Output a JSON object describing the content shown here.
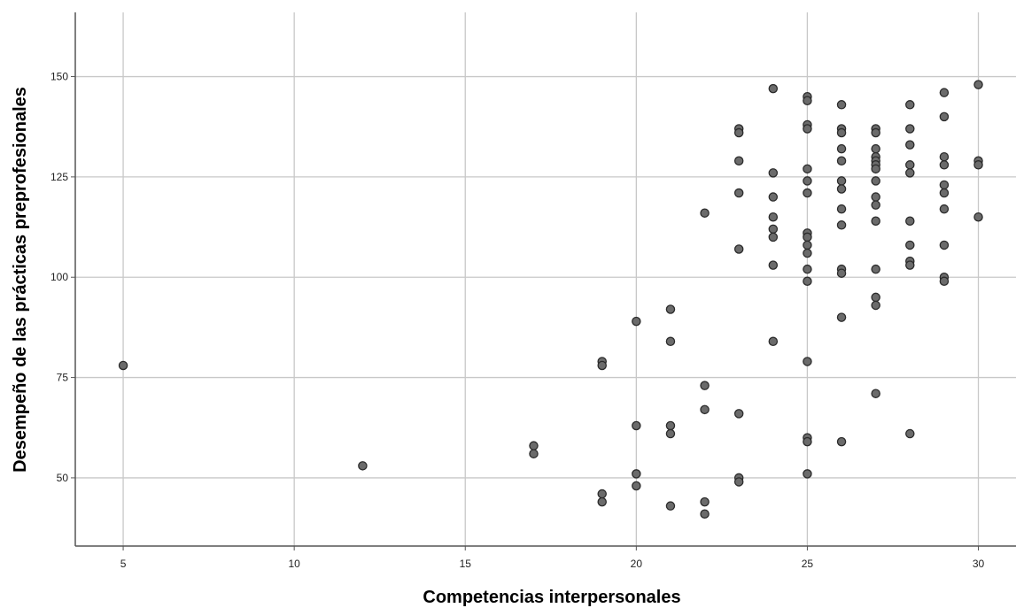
{
  "chart_data": {
    "type": "scatter",
    "title": "",
    "xlabel": "Competencias interpersonales",
    "ylabel": "Desempeño de las prácticas preprofesionales",
    "xlim": [
      3.6,
      31.1
    ],
    "ylim": [
      33,
      166
    ],
    "xticks": [
      5,
      10,
      15,
      20,
      25,
      30
    ],
    "yticks": [
      50,
      75,
      100,
      125,
      150
    ],
    "grid": true,
    "legend": "none",
    "marker_color": "#6b6b6b",
    "marker_edge_color": "#2b2b2b",
    "points": [
      {
        "x": 5,
        "y": 78
      },
      {
        "x": 12,
        "y": 53
      },
      {
        "x": 17,
        "y": 58
      },
      {
        "x": 17,
        "y": 56
      },
      {
        "x": 19,
        "y": 79
      },
      {
        "x": 19,
        "y": 78
      },
      {
        "x": 19,
        "y": 46
      },
      {
        "x": 19,
        "y": 44
      },
      {
        "x": 20,
        "y": 89
      },
      {
        "x": 20,
        "y": 63
      },
      {
        "x": 20,
        "y": 51
      },
      {
        "x": 20,
        "y": 48
      },
      {
        "x": 21,
        "y": 92
      },
      {
        "x": 21,
        "y": 84
      },
      {
        "x": 21,
        "y": 63
      },
      {
        "x": 21,
        "y": 61
      },
      {
        "x": 21,
        "y": 43
      },
      {
        "x": 22,
        "y": 116
      },
      {
        "x": 22,
        "y": 73
      },
      {
        "x": 22,
        "y": 67
      },
      {
        "x": 22,
        "y": 44
      },
      {
        "x": 22,
        "y": 41
      },
      {
        "x": 23,
        "y": 137
      },
      {
        "x": 23,
        "y": 136
      },
      {
        "x": 23,
        "y": 129
      },
      {
        "x": 23,
        "y": 121
      },
      {
        "x": 23,
        "y": 107
      },
      {
        "x": 23,
        "y": 66
      },
      {
        "x": 23,
        "y": 50
      },
      {
        "x": 23,
        "y": 49
      },
      {
        "x": 24,
        "y": 147
      },
      {
        "x": 24,
        "y": 126
      },
      {
        "x": 24,
        "y": 120
      },
      {
        "x": 24,
        "y": 115
      },
      {
        "x": 24,
        "y": 112
      },
      {
        "x": 24,
        "y": 110
      },
      {
        "x": 24,
        "y": 103
      },
      {
        "x": 24,
        "y": 84
      },
      {
        "x": 25,
        "y": 145
      },
      {
        "x": 25,
        "y": 144
      },
      {
        "x": 25,
        "y": 138
      },
      {
        "x": 25,
        "y": 137
      },
      {
        "x": 25,
        "y": 127
      },
      {
        "x": 25,
        "y": 124
      },
      {
        "x": 25,
        "y": 121
      },
      {
        "x": 25,
        "y": 111
      },
      {
        "x": 25,
        "y": 110
      },
      {
        "x": 25,
        "y": 108
      },
      {
        "x": 25,
        "y": 106
      },
      {
        "x": 25,
        "y": 102
      },
      {
        "x": 25,
        "y": 99
      },
      {
        "x": 25,
        "y": 79
      },
      {
        "x": 25,
        "y": 60
      },
      {
        "x": 25,
        "y": 59
      },
      {
        "x": 25,
        "y": 51
      },
      {
        "x": 26,
        "y": 143
      },
      {
        "x": 26,
        "y": 137
      },
      {
        "x": 26,
        "y": 136
      },
      {
        "x": 26,
        "y": 132
      },
      {
        "x": 26,
        "y": 129
      },
      {
        "x": 26,
        "y": 124
      },
      {
        "x": 26,
        "y": 122
      },
      {
        "x": 26,
        "y": 117
      },
      {
        "x": 26,
        "y": 113
      },
      {
        "x": 26,
        "y": 102
      },
      {
        "x": 26,
        "y": 101
      },
      {
        "x": 26,
        "y": 90
      },
      {
        "x": 26,
        "y": 59
      },
      {
        "x": 27,
        "y": 137
      },
      {
        "x": 27,
        "y": 136
      },
      {
        "x": 27,
        "y": 132
      },
      {
        "x": 27,
        "y": 130
      },
      {
        "x": 27,
        "y": 129
      },
      {
        "x": 27,
        "y": 128
      },
      {
        "x": 27,
        "y": 127
      },
      {
        "x": 27,
        "y": 124
      },
      {
        "x": 27,
        "y": 120
      },
      {
        "x": 27,
        "y": 118
      },
      {
        "x": 27,
        "y": 114
      },
      {
        "x": 27,
        "y": 102
      },
      {
        "x": 27,
        "y": 95
      },
      {
        "x": 27,
        "y": 93
      },
      {
        "x": 27,
        "y": 71
      },
      {
        "x": 28,
        "y": 143
      },
      {
        "x": 28,
        "y": 137
      },
      {
        "x": 28,
        "y": 133
      },
      {
        "x": 28,
        "y": 128
      },
      {
        "x": 28,
        "y": 126
      },
      {
        "x": 28,
        "y": 114
      },
      {
        "x": 28,
        "y": 108
      },
      {
        "x": 28,
        "y": 104
      },
      {
        "x": 28,
        "y": 103
      },
      {
        "x": 28,
        "y": 61
      },
      {
        "x": 29,
        "y": 146
      },
      {
        "x": 29,
        "y": 140
      },
      {
        "x": 29,
        "y": 130
      },
      {
        "x": 29,
        "y": 128
      },
      {
        "x": 29,
        "y": 123
      },
      {
        "x": 29,
        "y": 121
      },
      {
        "x": 29,
        "y": 117
      },
      {
        "x": 29,
        "y": 108
      },
      {
        "x": 29,
        "y": 100
      },
      {
        "x": 29,
        "y": 99
      },
      {
        "x": 30,
        "y": 148
      },
      {
        "x": 30,
        "y": 129
      },
      {
        "x": 30,
        "y": 128
      },
      {
        "x": 30,
        "y": 115
      }
    ]
  }
}
